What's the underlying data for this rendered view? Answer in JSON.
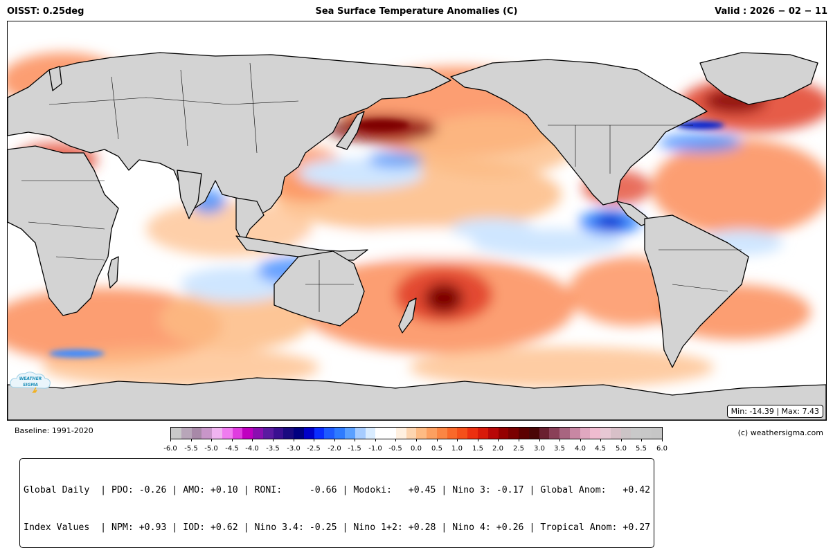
{
  "header": {
    "left": "OISST: 0.25deg",
    "center": "Sea Surface Temperature Anomalies (C)",
    "right": "Valid : 2026 − 02 − 11"
  },
  "map": {
    "minmax": "Min: -14.39 | Max: 7.43",
    "logo_line1": "WEATHER",
    "logo_line2": "SIGMA",
    "colors": {
      "land": "#d3d3d3",
      "ocean": "#ffffff",
      "coast": "#000000",
      "warm_light": "#fdbb84",
      "warm_mid": "#fc8d59",
      "warm_strong": "#e34a33",
      "warm_extreme": "#7f0000",
      "cool_light": "#cfe6ff",
      "cool_mid": "#3d8bff",
      "cool_strong": "#0022cc"
    }
  },
  "baseline": "Baseline: 1991-2020",
  "credit": "(c) weathersigma.com",
  "colorbar": {
    "ticks": [
      "-6.0",
      "-5.5",
      "-5.0",
      "-4.5",
      "-4.0",
      "-3.5",
      "-3.0",
      "-2.5",
      "-2.0",
      "-1.5",
      "-1.0",
      "-0.5",
      "0.0",
      "0.5",
      "1.0",
      "1.5",
      "2.0",
      "2.5",
      "3.0",
      "3.5",
      "4.0",
      "4.5",
      "5.0",
      "5.5",
      "6.0"
    ],
    "colors": [
      "#c9c9c9",
      "#b8a6b9",
      "#a889a8",
      "#c896c9",
      "#f0b4f0",
      "#f07cf0",
      "#e03ce0",
      "#c000c0",
      "#8a0fb0",
      "#5a1aa0",
      "#3a1090",
      "#1a0a80",
      "#000080",
      "#0000c8",
      "#0a2cff",
      "#1e5aff",
      "#2e7bff",
      "#5aa0ff",
      "#a6ccff",
      "#d9ecff",
      "#ffffff",
      "#ffffff",
      "#fff0e0",
      "#fdd5b0",
      "#fdbb84",
      "#fca061",
      "#fb8644",
      "#f9692a",
      "#f5501a",
      "#ec3010",
      "#d81a0a",
      "#b80808",
      "#950000",
      "#7a0000",
      "#5c0000",
      "#4a0606",
      "#6a2030",
      "#8a4058",
      "#a86580",
      "#c887a3",
      "#e0a8c0",
      "#f0bcd0",
      "#e8c8d4",
      "#d8c0c8",
      "#ccc4c6",
      "#c9c9c9",
      "#c8c8c8",
      "#c6c6c6"
    ]
  },
  "indices": {
    "row1": "Global Daily  | PDO: -0.26 | AMO: +0.10 | RONI:     -0.66 | Modoki:   +0.45 | Nino 3: -0.17 | Global Anom:   +0.42",
    "row2": "Index Values  | NPM: +0.93 | IOD: +0.62 | Nino 3.4: -0.25 | Nino 1+2: +0.28 | Nino 4: +0.26 | Tropical Anom: +0.27"
  }
}
